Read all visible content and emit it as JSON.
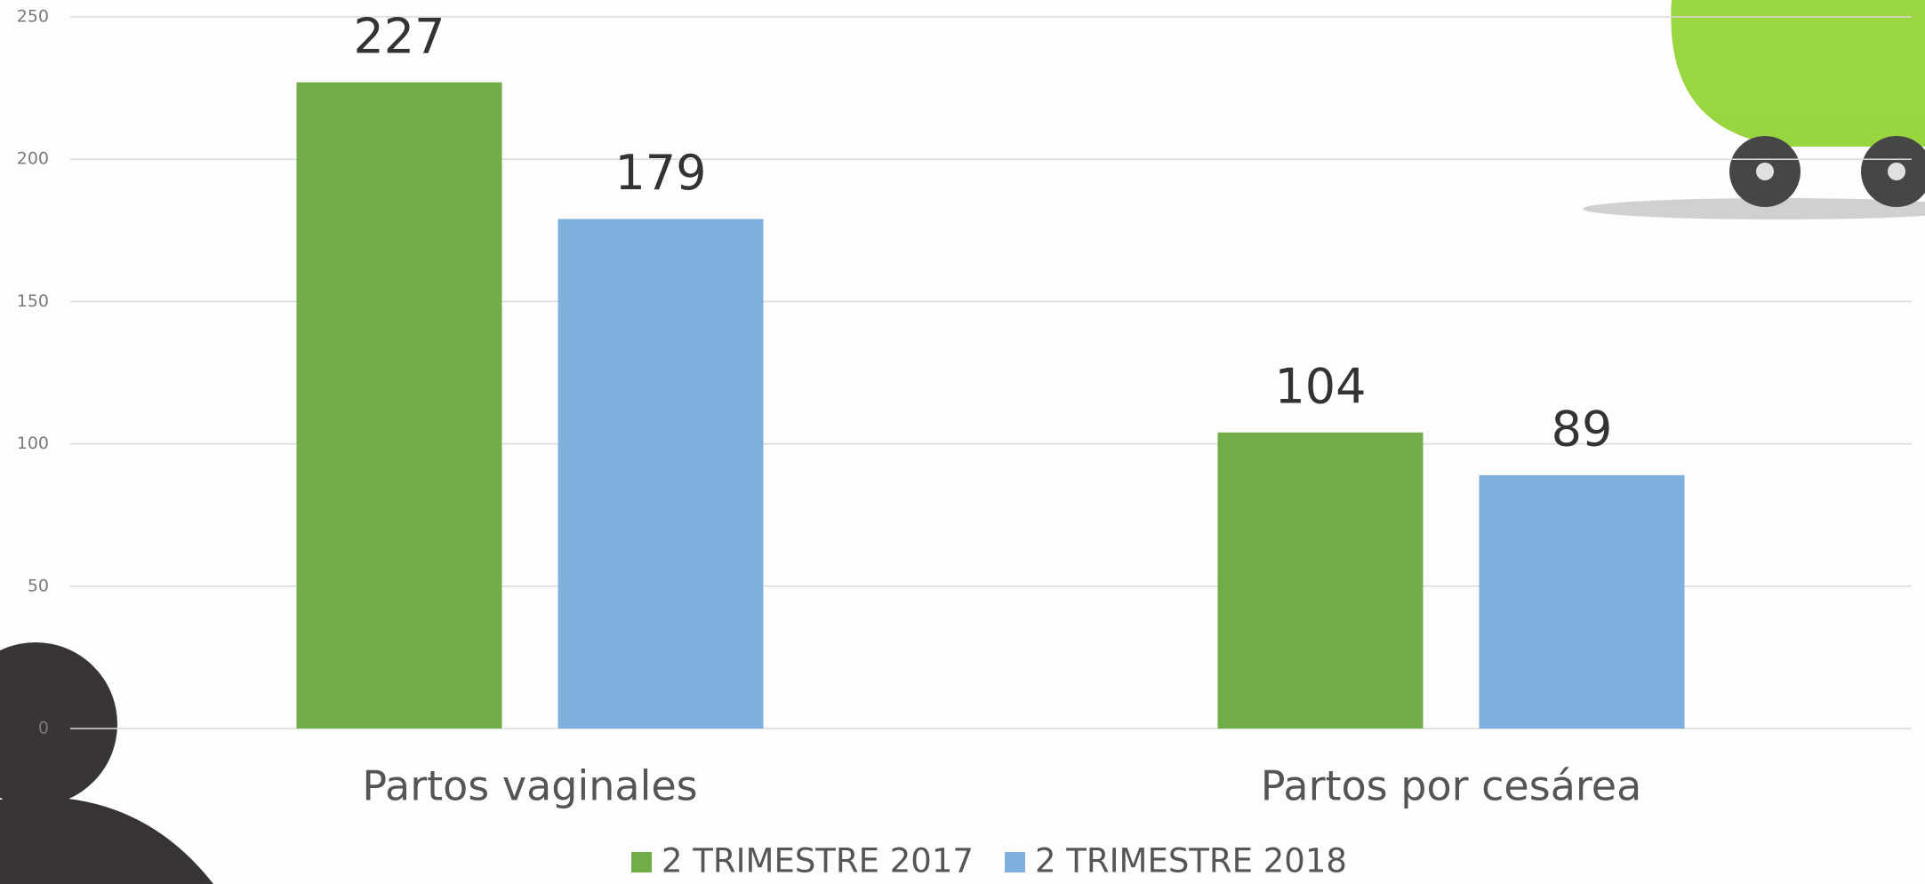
{
  "chart_data": {
    "type": "bar",
    "categories": [
      "Partos vaginales",
      "Partos por cesárea"
    ],
    "series": [
      {
        "name": "2 TRIMESTRE 2017",
        "color": "#70ad47",
        "values": [
          227,
          104
        ]
      },
      {
        "name": "2 TRIMESTRE 2018",
        "color": "#7fafdd",
        "values": [
          179,
          89
        ]
      }
    ],
    "ylim": [
      0,
      250
    ],
    "yticks": [
      0,
      50,
      100,
      150,
      200,
      250
    ],
    "grid": true
  }
}
